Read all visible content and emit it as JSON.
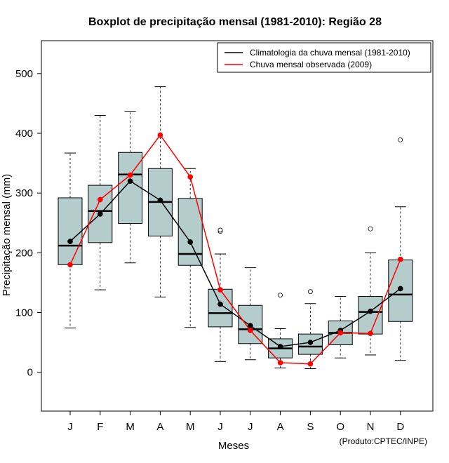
{
  "chart_data": {
    "type": "boxplot",
    "title": "Boxplot de precipitação mensal (1981-2010): Região 28",
    "xlabel": "Meses",
    "ylabel": "Precipitação mensal (mm)",
    "ylim": [
      -65,
      555
    ],
    "yticks": [
      0,
      100,
      200,
      300,
      400,
      500
    ],
    "categories": [
      "J",
      "F",
      "M",
      "A",
      "M",
      "J",
      "J",
      "A",
      "S",
      "O",
      "N",
      "D"
    ],
    "boxes": [
      {
        "whisker_low": 74,
        "q1": 180,
        "median": 212,
        "q3": 292,
        "whisker_high": 367,
        "outliers": []
      },
      {
        "whisker_low": 138,
        "q1": 217,
        "median": 270,
        "q3": 313,
        "whisker_high": 430,
        "outliers": []
      },
      {
        "whisker_low": 183,
        "q1": 249,
        "median": 331,
        "q3": 368,
        "whisker_high": 437,
        "outliers": []
      },
      {
        "whisker_low": 126,
        "q1": 228,
        "median": 285,
        "q3": 341,
        "whisker_high": 478,
        "outliers": []
      },
      {
        "whisker_low": 75,
        "q1": 179,
        "median": 198,
        "q3": 291,
        "whisker_high": 341,
        "outliers": []
      },
      {
        "whisker_low": 18,
        "q1": 76,
        "median": 99,
        "q3": 139,
        "whisker_high": 198,
        "outliers": [
          236,
          238
        ]
      },
      {
        "whisker_low": 21,
        "q1": 48,
        "median": 72,
        "q3": 112,
        "whisker_high": 175,
        "outliers": []
      },
      {
        "whisker_low": 7,
        "q1": 24,
        "median": 40,
        "q3": 56,
        "whisker_high": 73,
        "outliers": [
          129
        ]
      },
      {
        "whisker_low": 6,
        "q1": 30,
        "median": 43,
        "q3": 64,
        "whisker_high": 115,
        "outliers": [
          135
        ]
      },
      {
        "whisker_low": 24,
        "q1": 46,
        "median": 66,
        "q3": 86,
        "whisker_high": 127,
        "outliers": []
      },
      {
        "whisker_low": 29,
        "q1": 64,
        "median": 101,
        "q3": 127,
        "whisker_high": 200,
        "outliers": [
          240
        ]
      },
      {
        "whisker_low": 20,
        "q1": 85,
        "median": 130,
        "q3": 188,
        "whisker_high": 277,
        "outliers": [
          389
        ]
      }
    ],
    "series": [
      {
        "name": "Climatologia da chuva mensal (1981-2010)",
        "color": "#000000",
        "values": [
          219,
          265,
          320,
          288,
          218,
          114,
          78,
          43,
          50,
          70,
          102,
          140
        ]
      },
      {
        "name": "Chuva mensal observada (2009)",
        "color": "#ff0000",
        "values": [
          180,
          289,
          330,
          397,
          327,
          138,
          70,
          16,
          14,
          66,
          65,
          189
        ]
      }
    ],
    "box_fill": "#b4cccc",
    "legend_position": "top-right",
    "credit": "(Produto:CPTEC/INPE)"
  }
}
